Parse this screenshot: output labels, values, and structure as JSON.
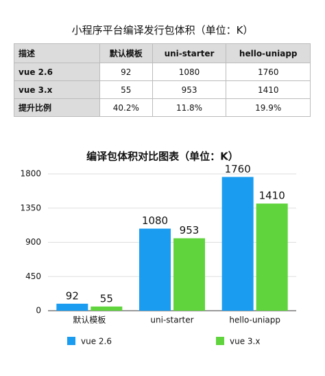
{
  "table": {
    "title": "小程序平台编译发行包体积（单位：K）",
    "rows": [
      [
        "描述",
        "默认模板",
        "uni-starter",
        "hello-uniapp"
      ],
      [
        "vue 2.6",
        "92",
        "1080",
        "1760"
      ],
      [
        "vue 3.x",
        "55",
        "953",
        "1410"
      ],
      [
        "提升比例",
        "40.2%",
        "11.8%",
        "19.9%"
      ]
    ]
  },
  "chart_data": {
    "type": "bar",
    "title": "编译包体积对比图表（单位：K）",
    "categories": [
      "默认模板",
      "uni-starter",
      "hello-uniapp"
    ],
    "series": [
      {
        "name": "vue 2.6",
        "color": "#1a9cf0",
        "values": [
          92,
          1080,
          1760
        ]
      },
      {
        "name": "vue 3.x",
        "color": "#5fd43c",
        "values": [
          55,
          953,
          1410
        ]
      }
    ],
    "ylim": [
      0,
      1800
    ],
    "yticks": [
      0,
      450,
      900,
      1350,
      1800
    ],
    "grid": true,
    "legend": "bottom"
  }
}
